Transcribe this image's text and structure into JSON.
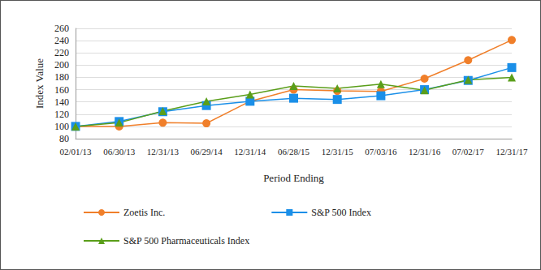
{
  "chart_data": {
    "type": "line",
    "x_label": "Period Ending",
    "y_label": "Index Value",
    "categories": [
      "02/01/13",
      "06/30/13",
      "12/31/13",
      "06/29/14",
      "12/31/14",
      "06/28/15",
      "12/31/15",
      "07/03/16",
      "12/31/16",
      "07/02/17",
      "12/31/17"
    ],
    "series": [
      {
        "name": "Zoetis Inc.",
        "color": "#f07f2a",
        "marker": "circle",
        "values": [
          100,
          100,
          106,
          105,
          141,
          160,
          158,
          157,
          178,
          208,
          241
        ]
      },
      {
        "name": "S&P 500 Index",
        "color": "#1a8fe8",
        "marker": "square",
        "values": [
          100,
          108,
          124,
          134,
          141,
          146,
          144,
          150,
          160,
          175,
          196
        ]
      },
      {
        "name": "S&P 500 Pharmaceuticals Index",
        "color": "#5a9e1a",
        "marker": "triangle",
        "values": [
          100,
          106,
          125,
          141,
          152,
          166,
          162,
          169,
          159,
          176,
          180
        ]
      }
    ],
    "ylim": [
      80,
      260
    ],
    "yticks": [
      80,
      100,
      120,
      140,
      160,
      180,
      200,
      220,
      240,
      260
    ],
    "grid": true,
    "legend": "bottom"
  }
}
